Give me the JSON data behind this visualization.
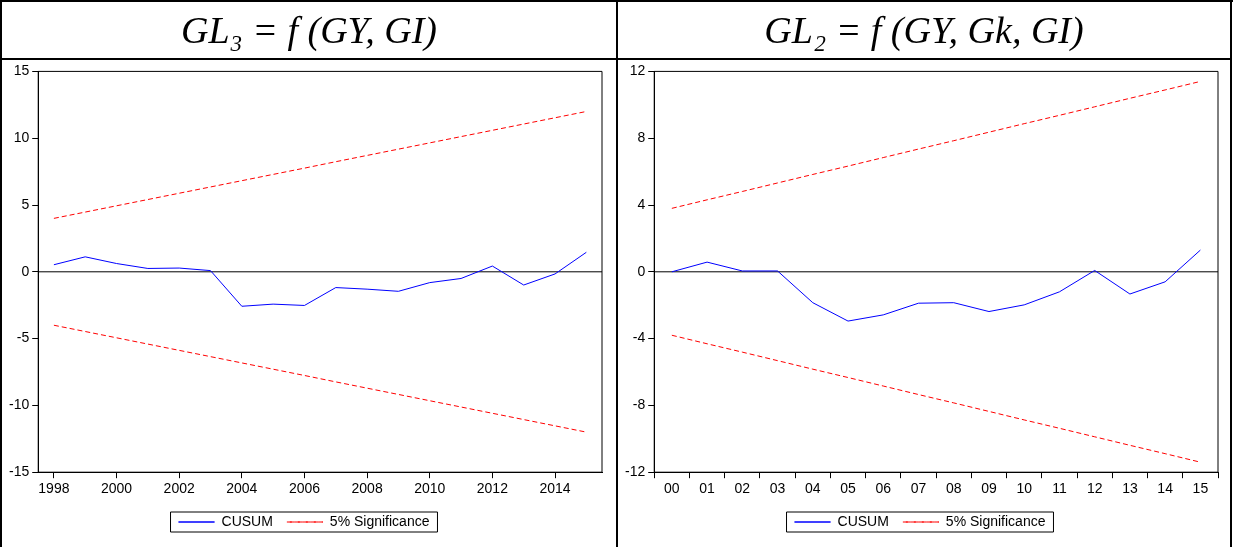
{
  "chart_data": [
    {
      "type": "line",
      "title": "GL₃ = f (GY, GI)",
      "x": [
        1998,
        1999,
        2000,
        2001,
        2002,
        2003,
        2004,
        2005,
        2006,
        2007,
        2008,
        2009,
        2010,
        2011,
        2012,
        2013,
        2014,
        2015
      ],
      "xlim": [
        1997.5,
        2015.5
      ],
      "xticks": [
        1998,
        2000,
        2002,
        2004,
        2006,
        2008,
        2010,
        2012,
        2014
      ],
      "ylim": [
        -15,
        15
      ],
      "yticks": [
        -15,
        -10,
        -5,
        0,
        5,
        10,
        15
      ],
      "grid": false,
      "legend": "bottom",
      "marker": "none",
      "series": [
        {
          "name": "CUSUM",
          "color": "#0000ff",
          "line_style": "solid",
          "values": [
            0.53,
            1.12,
            0.62,
            0.25,
            0.28,
            0.09,
            -2.58,
            -2.42,
            -2.52,
            -1.18,
            -1.3,
            -1.46,
            -0.81,
            -0.5,
            0.43,
            -0.99,
            -0.16,
            1.46
          ]
        },
        {
          "name": "5% Significance",
          "color": "#ff0000",
          "line_style": "dashed",
          "values": [
            4,
            4.47,
            4.94,
            5.41,
            5.88,
            6.35,
            6.82,
            7.29,
            7.76,
            8.24,
            8.71,
            9.18,
            9.65,
            10.12,
            10.59,
            11.06,
            11.53,
            12
          ]
        },
        {
          "color": "#ff0000",
          "line_style": "dashed",
          "values": [
            -4,
            -4.47,
            -4.94,
            -5.41,
            -5.88,
            -6.35,
            -6.82,
            -7.29,
            -7.76,
            -8.24,
            -8.71,
            -9.18,
            -9.65,
            -10.12,
            -10.59,
            -11.06,
            -11.53,
            -12
          ]
        }
      ],
      "ref_lines": [
        {
          "axis": "y",
          "value": 0,
          "color": "#000000"
        }
      ]
    },
    {
      "type": "line",
      "title": "GL₂ = f (GY, Gk, GI)",
      "categories": [
        "00",
        "01",
        "02",
        "03",
        "04",
        "05",
        "06",
        "07",
        "08",
        "09",
        "10",
        "11",
        "12",
        "13",
        "14",
        "15"
      ],
      "ylim": [
        -12,
        12
      ],
      "yticks": [
        -12,
        -8,
        -4,
        0,
        4,
        8,
        12
      ],
      "grid": false,
      "legend": "bottom",
      "marker": "none",
      "series": [
        {
          "name": "CUSUM",
          "color": "#0000ff",
          "line_style": "solid",
          "values": [
            0,
            0.58,
            0.05,
            0.05,
            -1.85,
            -2.95,
            -2.58,
            -1.88,
            -1.85,
            -2.38,
            -1.98,
            -1.2,
            0.08,
            -1.33,
            -0.6,
            1.3
          ]
        },
        {
          "name": "5% Significance",
          "color": "#ff0000",
          "line_style": "dashed",
          "values": [
            3.8,
            4.31,
            4.81,
            5.32,
            5.83,
            6.33,
            6.84,
            7.35,
            7.85,
            8.36,
            8.87,
            9.37,
            9.88,
            10.39,
            10.89,
            11.4
          ]
        },
        {
          "color": "#ff0000",
          "line_style": "dashed",
          "values": [
            -3.8,
            -4.31,
            -4.81,
            -5.32,
            -5.83,
            -6.33,
            -6.84,
            -7.35,
            -7.85,
            -8.36,
            -8.87,
            -9.37,
            -9.88,
            -10.39,
            -10.89,
            -11.4
          ]
        }
      ],
      "ref_lines": [
        {
          "axis": "y",
          "value": 0,
          "color": "#000000"
        }
      ]
    }
  ]
}
